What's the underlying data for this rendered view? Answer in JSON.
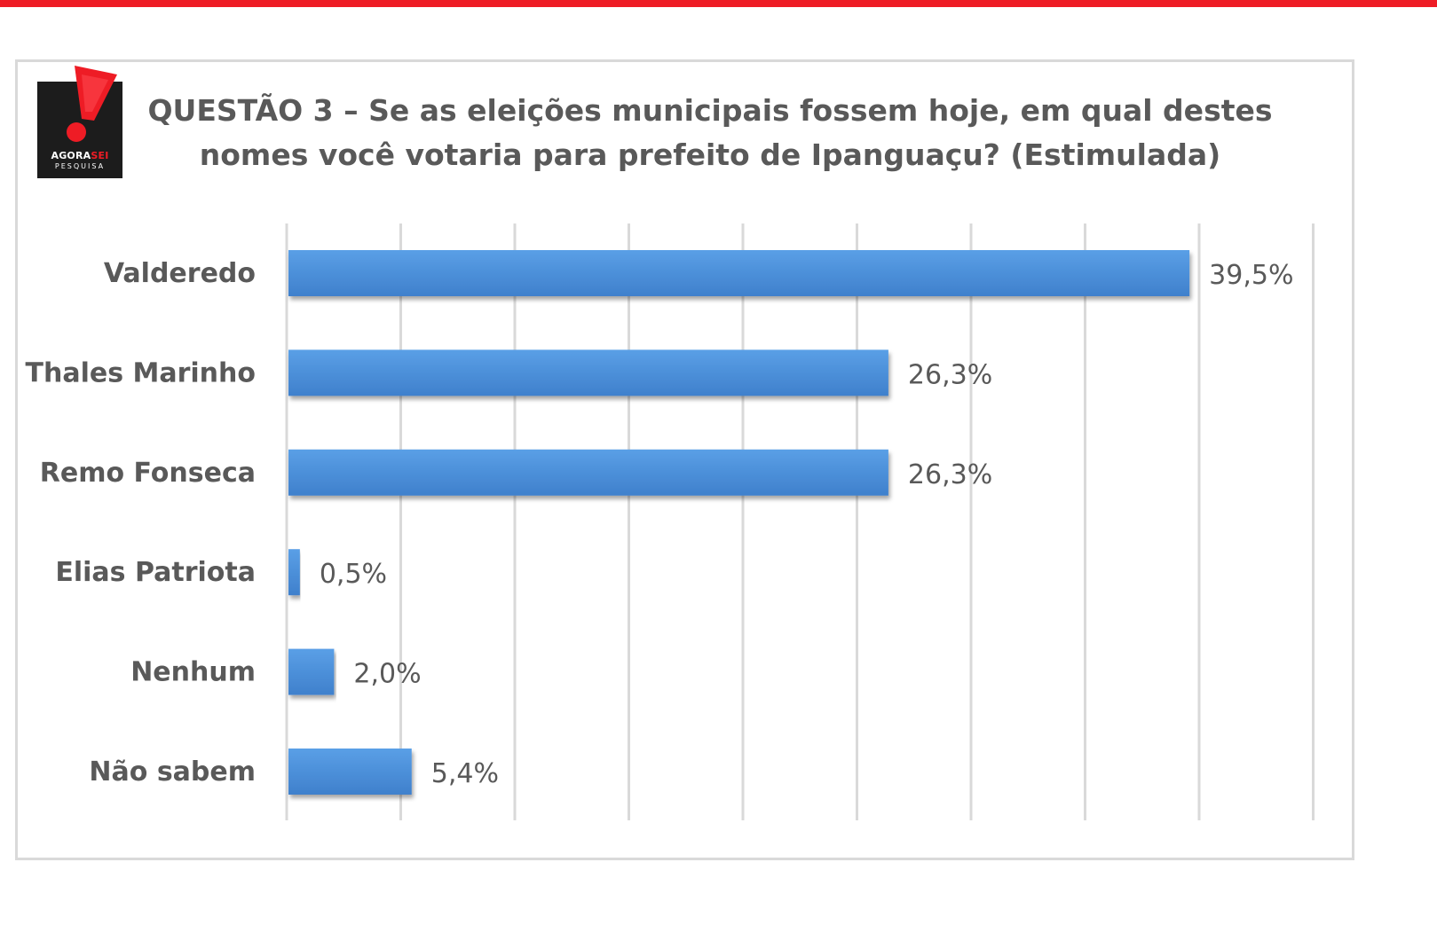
{
  "header": {
    "logo": {
      "brand_a": "AGORA",
      "brand_b": "SEI",
      "sub": "PESQUISA",
      "icon": "exclamation-mark-icon"
    },
    "title_line1": "QUESTÃO 3 – Se as eleições municipais fossem hoje, em qual destes",
    "title_line2": "nomes você votaria para prefeito de Ipanguaçu? (Estimulada)"
  },
  "colors": {
    "top_bar": "#ee1c25",
    "bar": "#4a8fd9",
    "text": "#595959",
    "grid": "#d9d9d9"
  },
  "chart_data": {
    "type": "bar",
    "orientation": "horizontal",
    "title": "QUESTÃO 3 – Se as eleições municipais fossem hoje, em qual destes nomes você votaria para prefeito de Ipanguaçu? (Estimulada)",
    "categories": [
      "Valderedo",
      "Thales Marinho",
      "Remo Fonseca",
      "Elias Patriota",
      "Nenhum",
      "Não sabem"
    ],
    "values": [
      39.5,
      26.3,
      26.3,
      0.5,
      2.0,
      5.4
    ],
    "value_labels": [
      "39,5%",
      "26,3%",
      "26,3%",
      "0,5%",
      "2,0%",
      "5,4%"
    ],
    "xlim": [
      0,
      45
    ],
    "grid_step": 5,
    "grid": true,
    "xlabel": "",
    "ylabel": ""
  }
}
